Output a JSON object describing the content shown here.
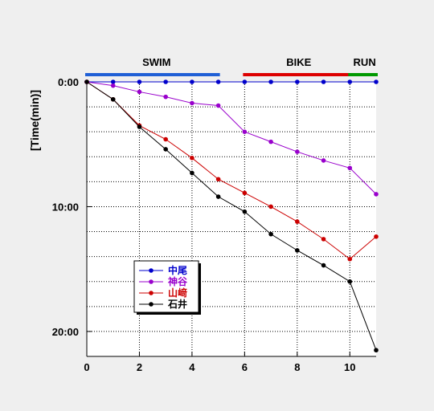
{
  "chart_data": {
    "type": "line",
    "title": "",
    "xlabel": "",
    "ylabel": "[Time(min)]",
    "xlim": [
      0,
      11
    ],
    "ylim": [
      0,
      22
    ],
    "y_inverted": true,
    "grid": true,
    "legend_placement": "bottom-left",
    "x_ticks": [
      0,
      2,
      4,
      6,
      8,
      10
    ],
    "x_tick_labels": [
      "0",
      "2",
      "4",
      "6",
      "8",
      "10"
    ],
    "y_ticks": [
      0,
      10,
      20
    ],
    "y_tick_labels": [
      "0:00",
      "10:00",
      "20:00"
    ],
    "stages": [
      {
        "label": "SWIM",
        "x_start": 0,
        "x_end": 5,
        "color": "#1f5fd6"
      },
      {
        "label": "BIKE",
        "x_start": 6,
        "x_end": 10,
        "color": "#dd0000"
      },
      {
        "label": "RUN",
        "x_start": 10,
        "x_end": 11,
        "color": "#009900"
      }
    ],
    "x": [
      0,
      1,
      2,
      3,
      4,
      5,
      6,
      7,
      8,
      9,
      10,
      11
    ],
    "series": [
      {
        "name": "中尾",
        "color": "#0000cc",
        "values": [
          0,
          0,
          0,
          0,
          0,
          0,
          0,
          0,
          0,
          0,
          0,
          0
        ]
      },
      {
        "name": "神谷",
        "color": "#9900cc",
        "values": [
          0,
          0.3,
          0.8,
          1.2,
          1.7,
          1.9,
          4.0,
          4.8,
          5.6,
          6.3,
          6.9,
          9.0
        ]
      },
      {
        "name": "山﨑",
        "color": "#cc0000",
        "values": [
          0,
          1.4,
          3.5,
          4.6,
          6.1,
          7.8,
          8.9,
          10.0,
          11.2,
          12.6,
          14.2,
          12.4
        ]
      },
      {
        "name": "石井",
        "color": "#000000",
        "values": [
          0,
          1.4,
          3.6,
          5.4,
          7.3,
          9.2,
          10.4,
          12.2,
          13.5,
          14.7,
          16.0,
          21.5
        ]
      }
    ]
  }
}
